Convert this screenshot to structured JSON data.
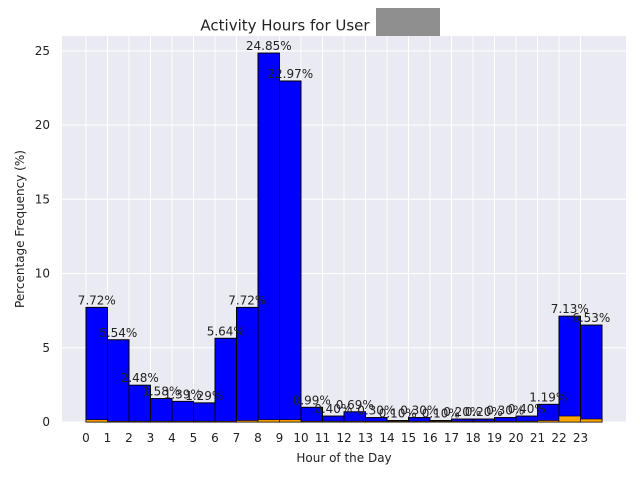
{
  "chart_data": {
    "type": "bar",
    "title": "Activity Hours for User",
    "xlabel": "Hour of the Day",
    "ylabel": "Percentage Frequency (%)",
    "ylim": [
      0,
      26
    ],
    "yticks": [
      0,
      5,
      10,
      15,
      20,
      25
    ],
    "categories": [
      "0",
      "1",
      "2",
      "3",
      "4",
      "5",
      "6",
      "7",
      "8",
      "9",
      "10",
      "11",
      "12",
      "13",
      "14",
      "15",
      "16",
      "17",
      "18",
      "19",
      "20",
      "21",
      "22",
      "23"
    ],
    "series": [
      {
        "values": [
          7.72,
          5.54,
          2.48,
          1.58,
          1.39,
          1.29,
          5.64,
          7.72,
          24.85,
          22.97,
          0.99,
          0.4,
          0.69,
          0.3,
          0.1,
          0.3,
          0.1,
          0.2,
          0.2,
          0.3,
          0.4,
          1.19,
          7.13,
          6.53
        ],
        "color": "#0000ff"
      },
      {
        "values": [
          0.15,
          0.05,
          0.05,
          0.05,
          0.03,
          0.03,
          0.05,
          0.1,
          0.15,
          0.15,
          0.05,
          0.02,
          0.02,
          0.02,
          0.01,
          0.02,
          0.01,
          0.01,
          0.01,
          0.02,
          0.02,
          0.1,
          0.4,
          0.2
        ],
        "color": "#ffa500"
      }
    ],
    "data_labels": [
      "7.72%",
      "5.54%",
      "2.48%",
      "1.58%",
      "1.39%",
      "1.29%",
      "5.64%",
      "7.72%",
      "24.85%",
      "22.97%",
      "0.99%",
      "0.40%",
      "0.69%",
      "0.30%",
      "0.10%",
      "0.30%",
      "0.10%",
      "0.20%",
      "0.20%",
      "0.30%",
      "0.40%",
      "1.19%",
      "7.13%",
      "6.53%"
    ],
    "grid": true,
    "background": "#eaeaf2",
    "grid_color": "#ffffff",
    "bar_edge_color": "#000000"
  }
}
